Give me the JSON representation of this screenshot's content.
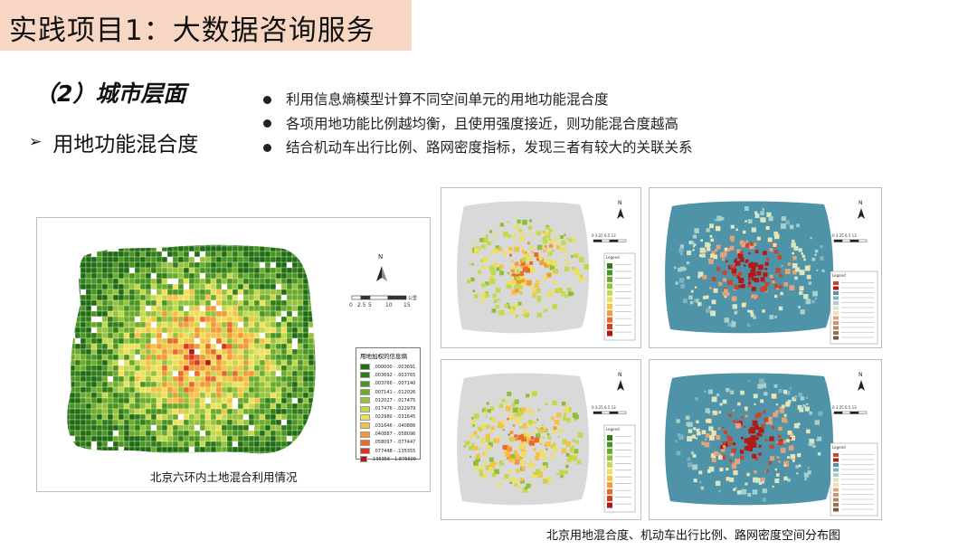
{
  "header": {
    "title": "实践项目1：大数据咨询服务"
  },
  "section": {
    "subtitle": "（2）城市层面",
    "point_label": "用地功能混合度"
  },
  "bullets": [
    "利用信息熵模型计算不同空间单元的用地功能混合度",
    "各项用地功能比例越均衡，且使用强度接近，则功能混合度越高",
    "结合机动车出行比例、路网密度指标，发现三者有较大的关联关系"
  ],
  "main_map": {
    "caption": "北京六环内土地混合利用情况",
    "north_label": "N",
    "scale_ticks": [
      "0",
      "2.5",
      "5",
      "10",
      "15"
    ],
    "scale_unit": "公里",
    "legend_title": "用地加权的信息熵",
    "legend_items": [
      {
        "label": ".000000 - .003691",
        "color": "#1e6b12"
      },
      {
        "label": ".003692 - .003765",
        "color": "#2f7d17"
      },
      {
        "label": ".003766 - .007140",
        "color": "#4a9421"
      },
      {
        "label": ".007141 - .012026",
        "color": "#6aab2a"
      },
      {
        "label": ".012027 - .017475",
        "color": "#95c23a"
      },
      {
        "label": ".017476 - .022979",
        "color": "#c4d84a"
      },
      {
        "label": ".022980 - .031645",
        "color": "#eee05a"
      },
      {
        "label": ".031646 - .040886",
        "color": "#f7c244"
      },
      {
        "label": ".040887 - .058096",
        "color": "#f39a36"
      },
      {
        "label": ".058097 - .077447",
        "color": "#ea6a2a"
      },
      {
        "label": ".077448 - .135355",
        "color": "#d9381f"
      },
      {
        "label": ".135356 - 1.876609",
        "color": "#b11515"
      }
    ]
  },
  "small_maps": {
    "north_label": "N",
    "scale_text": "0 3.25 6.5   13",
    "legend_title": "Legend",
    "caption": "北京用地混合度、机动车出行比例、路网密度空间分布图"
  }
}
